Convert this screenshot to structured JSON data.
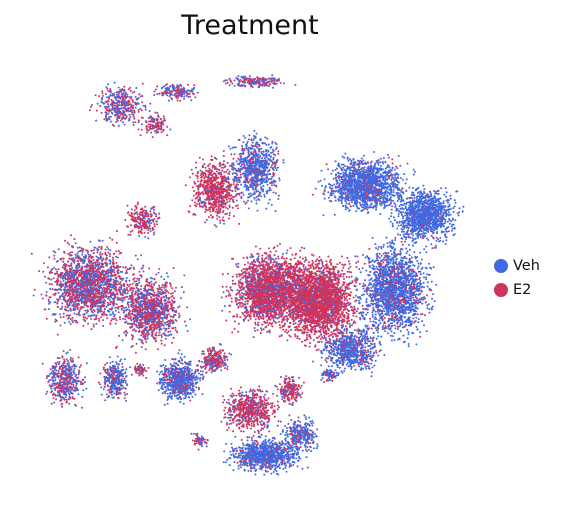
{
  "chart_data": {
    "type": "scatter",
    "title": "Treatment",
    "xlabel": "",
    "ylabel": "",
    "grid": false,
    "axes_visible": false,
    "legend_position": "right",
    "series": [
      {
        "name": "Veh",
        "color": "#4169e1"
      },
      {
        "name": "E2",
        "color": "#d0335c"
      }
    ]
  }
}
